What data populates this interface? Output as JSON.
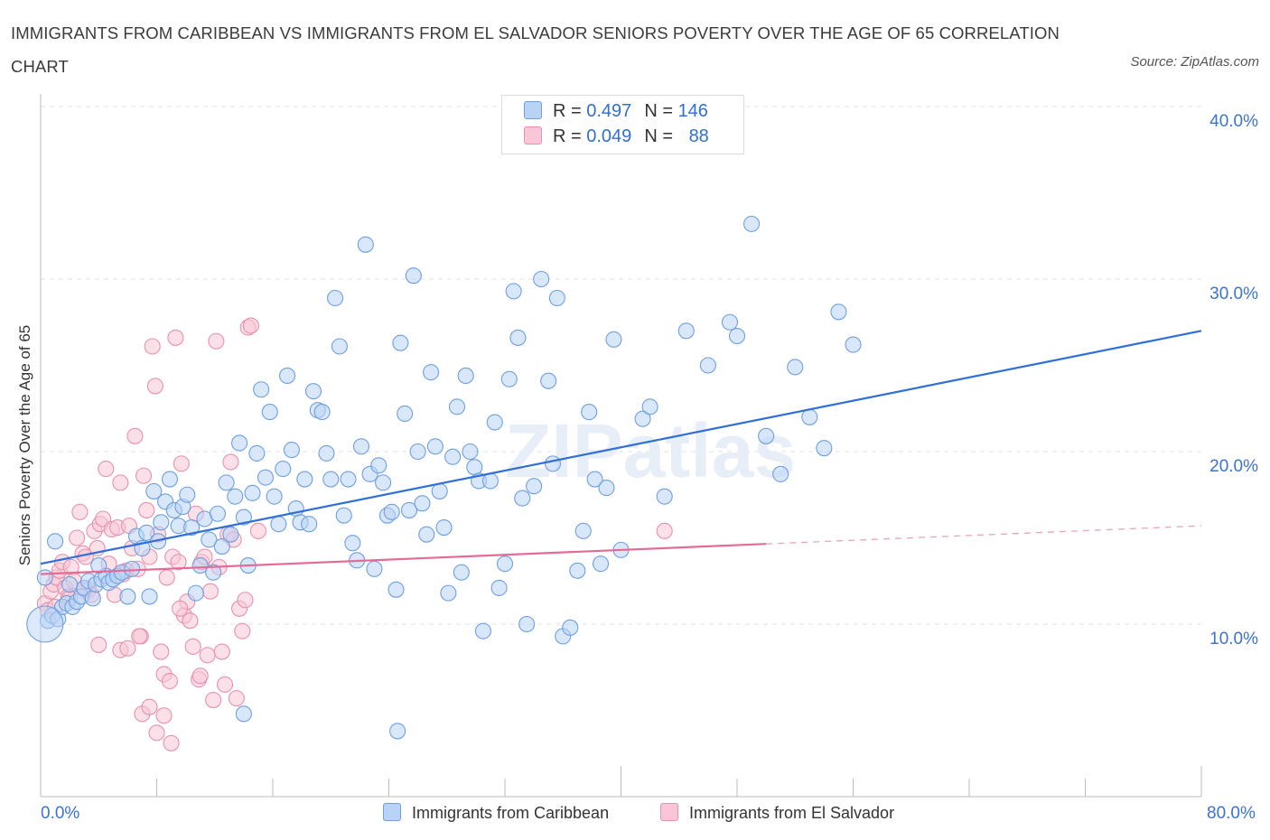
{
  "title": "IMMIGRANTS FROM CARIBBEAN VS IMMIGRANTS FROM EL SALVADOR SENIORS POVERTY OVER THE AGE OF 65 CORRELATION CHART",
  "source": "Source: ZipAtlas.com",
  "watermark": "ZIPatlas",
  "legend": {
    "rows": [
      {
        "r_label": "R =",
        "r_value": "0.497",
        "n_label": "N =",
        "n_value": "146",
        "color": "#6e9fe0"
      },
      {
        "r_label": "R =",
        "r_value": "0.049",
        "n_label": "N =",
        "n_value": "88",
        "color": "#e890ad"
      }
    ]
  },
  "chart_data": {
    "type": "scatter",
    "title": "IMMIGRANTS FROM CARIBBEAN VS IMMIGRANTS FROM EL SALVADOR SENIORS POVERTY OVER THE AGE OF 65 CORRELATION CHART",
    "xlabel": "",
    "ylabel": "Seniors Poverty Over the Age of 65",
    "xlim": [
      0,
      80
    ],
    "ylim": [
      0,
      42
    ],
    "x_tick_labels": [
      "0.0%",
      "80.0%"
    ],
    "y_ticks": [
      10,
      20,
      30,
      40
    ],
    "y_tick_labels": [
      "10.0%",
      "20.0%",
      "30.0%",
      "40.0%"
    ],
    "legend_position": "bottom",
    "series": [
      {
        "name": "Immigrants from Caribbean",
        "color": "#6e9fe0",
        "fill": "#b9d3f5",
        "R": 0.497,
        "N": 146,
        "trend": {
          "x0": 0,
          "y0": 13.5,
          "x1": 80,
          "y1": 27.0,
          "dashed_from": null
        },
        "points": [
          [
            0.5,
            10.2
          ],
          [
            0.8,
            10.5
          ],
          [
            1.2,
            10.3
          ],
          [
            1.5,
            11.0
          ],
          [
            1.8,
            11.2
          ],
          [
            2.2,
            11.0
          ],
          [
            2.5,
            11.3
          ],
          [
            2.8,
            11.6
          ],
          [
            3.0,
            12.1
          ],
          [
            3.3,
            12.5
          ],
          [
            3.6,
            11.5
          ],
          [
            3.8,
            12.3
          ],
          [
            4.2,
            12.6
          ],
          [
            4.5,
            12.8
          ],
          [
            4.7,
            12.4
          ],
          [
            5.0,
            12.6
          ],
          [
            5.3,
            12.8
          ],
          [
            5.6,
            13.0
          ],
          [
            6.0,
            11.6
          ],
          [
            6.3,
            13.2
          ],
          [
            6.6,
            15.1
          ],
          [
            7.0,
            14.4
          ],
          [
            7.3,
            15.3
          ],
          [
            7.5,
            11.6
          ],
          [
            7.8,
            17.7
          ],
          [
            8.1,
            14.8
          ],
          [
            8.3,
            15.9
          ],
          [
            8.6,
            17.1
          ],
          [
            8.9,
            18.4
          ],
          [
            9.2,
            16.6
          ],
          [
            9.5,
            15.7
          ],
          [
            9.8,
            16.8
          ],
          [
            10.1,
            17.5
          ],
          [
            10.4,
            15.6
          ],
          [
            10.7,
            11.8
          ],
          [
            11.0,
            13.4
          ],
          [
            11.3,
            16.1
          ],
          [
            11.6,
            14.9
          ],
          [
            11.9,
            13.0
          ],
          [
            12.2,
            16.4
          ],
          [
            12.5,
            14.5
          ],
          [
            12.8,
            18.2
          ],
          [
            13.1,
            15.2
          ],
          [
            13.4,
            17.4
          ],
          [
            13.7,
            20.5
          ],
          [
            14.0,
            16.2
          ],
          [
            14.3,
            13.4
          ],
          [
            14.6,
            17.6
          ],
          [
            14.9,
            19.9
          ],
          [
            15.2,
            23.6
          ],
          [
            15.5,
            18.5
          ],
          [
            15.8,
            22.3
          ],
          [
            16.1,
            17.4
          ],
          [
            16.4,
            15.8
          ],
          [
            16.7,
            19.0
          ],
          [
            17.0,
            24.4
          ],
          [
            17.3,
            20.1
          ],
          [
            17.6,
            16.7
          ],
          [
            17.9,
            15.9
          ],
          [
            18.2,
            18.4
          ],
          [
            18.5,
            15.8
          ],
          [
            18.8,
            23.5
          ],
          [
            19.1,
            22.4
          ],
          [
            19.4,
            22.3
          ],
          [
            19.7,
            19.9
          ],
          [
            20.0,
            18.4
          ],
          [
            20.3,
            28.9
          ],
          [
            20.6,
            26.1
          ],
          [
            20.9,
            16.3
          ],
          [
            21.2,
            18.4
          ],
          [
            21.5,
            14.7
          ],
          [
            21.8,
            13.7
          ],
          [
            22.1,
            20.3
          ],
          [
            22.4,
            32.0
          ],
          [
            22.7,
            18.7
          ],
          [
            23.0,
            13.2
          ],
          [
            23.3,
            19.2
          ],
          [
            23.6,
            18.2
          ],
          [
            23.9,
            16.3
          ],
          [
            24.2,
            16.5
          ],
          [
            24.5,
            12.0
          ],
          [
            24.8,
            26.3
          ],
          [
            25.1,
            22.2
          ],
          [
            25.4,
            16.6
          ],
          [
            25.7,
            30.2
          ],
          [
            26.0,
            20.0
          ],
          [
            26.3,
            17.0
          ],
          [
            26.6,
            15.2
          ],
          [
            26.9,
            24.6
          ],
          [
            27.2,
            20.3
          ],
          [
            27.5,
            17.7
          ],
          [
            27.8,
            15.6
          ],
          [
            28.1,
            11.8
          ],
          [
            28.4,
            19.7
          ],
          [
            28.7,
            22.6
          ],
          [
            29.0,
            13.0
          ],
          [
            29.3,
            24.4
          ],
          [
            29.6,
            20.0
          ],
          [
            29.9,
            19.1
          ],
          [
            30.2,
            18.3
          ],
          [
            30.5,
            9.6
          ],
          [
            31.0,
            18.3
          ],
          [
            31.3,
            21.7
          ],
          [
            31.6,
            12.1
          ],
          [
            32.0,
            13.5
          ],
          [
            32.3,
            24.2
          ],
          [
            32.6,
            29.3
          ],
          [
            32.9,
            26.6
          ],
          [
            33.2,
            17.3
          ],
          [
            33.5,
            10.0
          ],
          [
            34.0,
            18.0
          ],
          [
            34.5,
            30.0
          ],
          [
            35.0,
            24.1
          ],
          [
            35.3,
            19.3
          ],
          [
            35.6,
            28.9
          ],
          [
            36.0,
            9.3
          ],
          [
            36.5,
            9.8
          ],
          [
            37.0,
            13.1
          ],
          [
            37.4,
            15.4
          ],
          [
            37.8,
            22.3
          ],
          [
            38.2,
            18.4
          ],
          [
            38.6,
            13.5
          ],
          [
            39.0,
            17.9
          ],
          [
            39.5,
            26.5
          ],
          [
            40.0,
            14.3
          ],
          [
            41.5,
            21.9
          ],
          [
            42.0,
            22.6
          ],
          [
            43.0,
            17.4
          ],
          [
            44.5,
            27.0
          ],
          [
            46.0,
            25.0
          ],
          [
            47.5,
            27.5
          ],
          [
            48.0,
            26.7
          ],
          [
            49.0,
            33.2
          ],
          [
            50.0,
            20.9
          ],
          [
            51.0,
            18.7
          ],
          [
            52.0,
            24.9
          ],
          [
            53.0,
            22.0
          ],
          [
            54.0,
            20.2
          ],
          [
            55.0,
            28.1
          ],
          [
            56.0,
            26.2
          ],
          [
            14.0,
            4.8
          ],
          [
            24.6,
            3.8
          ],
          [
            0.3,
            12.7
          ],
          [
            1.0,
            14.8
          ],
          [
            2.0,
            12.3
          ],
          [
            4.0,
            13.4
          ]
        ]
      },
      {
        "name": "Immigrants from El Salvador",
        "color": "#e890ad",
        "fill": "#f8c6d6",
        "R": 0.049,
        "N": 88,
        "trend": {
          "x0": 0,
          "y0": 12.9,
          "x1": 80,
          "y1": 15.7,
          "dashed_from": 50
        },
        "points": [
          [
            0.3,
            11.2
          ],
          [
            0.5,
            10.8
          ],
          [
            0.7,
            11.9
          ],
          [
            0.9,
            12.3
          ],
          [
            1.1,
            12.7
          ],
          [
            1.3,
            13.1
          ],
          [
            1.5,
            13.6
          ],
          [
            1.7,
            12.1
          ],
          [
            1.9,
            11.6
          ],
          [
            2.1,
            13.3
          ],
          [
            2.3,
            12.5
          ],
          [
            2.5,
            15.0
          ],
          [
            2.7,
            16.5
          ],
          [
            2.9,
            14.1
          ],
          [
            3.1,
            13.9
          ],
          [
            3.3,
            12.0
          ],
          [
            3.5,
            11.7
          ],
          [
            3.7,
            15.4
          ],
          [
            3.9,
            14.4
          ],
          [
            4.1,
            15.8
          ],
          [
            4.3,
            16.1
          ],
          [
            4.5,
            19.0
          ],
          [
            4.7,
            13.5
          ],
          [
            4.9,
            15.5
          ],
          [
            5.1,
            11.7
          ],
          [
            5.3,
            15.6
          ],
          [
            5.5,
            18.2
          ],
          [
            5.7,
            12.9
          ],
          [
            5.9,
            13.1
          ],
          [
            6.1,
            15.7
          ],
          [
            6.3,
            14.4
          ],
          [
            6.5,
            20.9
          ],
          [
            6.7,
            13.2
          ],
          [
            6.9,
            9.3
          ],
          [
            7.1,
            18.6
          ],
          [
            7.3,
            16.6
          ],
          [
            7.5,
            13.9
          ],
          [
            7.7,
            26.1
          ],
          [
            7.9,
            23.8
          ],
          [
            8.1,
            15.2
          ],
          [
            8.3,
            8.4
          ],
          [
            8.5,
            7.1
          ],
          [
            8.7,
            12.7
          ],
          [
            8.9,
            6.7
          ],
          [
            9.1,
            13.9
          ],
          [
            9.3,
            26.6
          ],
          [
            9.5,
            13.6
          ],
          [
            9.7,
            19.3
          ],
          [
            9.9,
            10.5
          ],
          [
            10.1,
            11.3
          ],
          [
            10.3,
            10.2
          ],
          [
            10.5,
            8.7
          ],
          [
            10.7,
            16.4
          ],
          [
            10.9,
            6.8
          ],
          [
            11.1,
            13.6
          ],
          [
            11.3,
            13.9
          ],
          [
            11.5,
            8.2
          ],
          [
            11.7,
            11.9
          ],
          [
            11.9,
            5.6
          ],
          [
            12.1,
            26.4
          ],
          [
            12.3,
            13.3
          ],
          [
            12.5,
            8.4
          ],
          [
            12.7,
            6.5
          ],
          [
            12.9,
            15.2
          ],
          [
            13.1,
            19.4
          ],
          [
            13.3,
            14.9
          ],
          [
            13.5,
            5.7
          ],
          [
            13.7,
            10.9
          ],
          [
            13.9,
            9.6
          ],
          [
            14.1,
            11.4
          ],
          [
            14.3,
            27.2
          ],
          [
            14.5,
            27.3
          ],
          [
            15.0,
            15.4
          ],
          [
            5.5,
            8.5
          ],
          [
            6.0,
            8.6
          ],
          [
            7.0,
            4.8
          ],
          [
            7.5,
            5.2
          ],
          [
            8.0,
            3.7
          ],
          [
            8.5,
            4.7
          ],
          [
            9.0,
            3.1
          ],
          [
            1.0,
            11.0
          ],
          [
            2.0,
            11.5
          ],
          [
            3.0,
            12.0
          ],
          [
            4.0,
            8.8
          ],
          [
            6.8,
            9.3
          ],
          [
            9.6,
            10.9
          ],
          [
            11.0,
            7.0
          ],
          [
            43.0,
            15.4
          ]
        ]
      }
    ]
  }
}
